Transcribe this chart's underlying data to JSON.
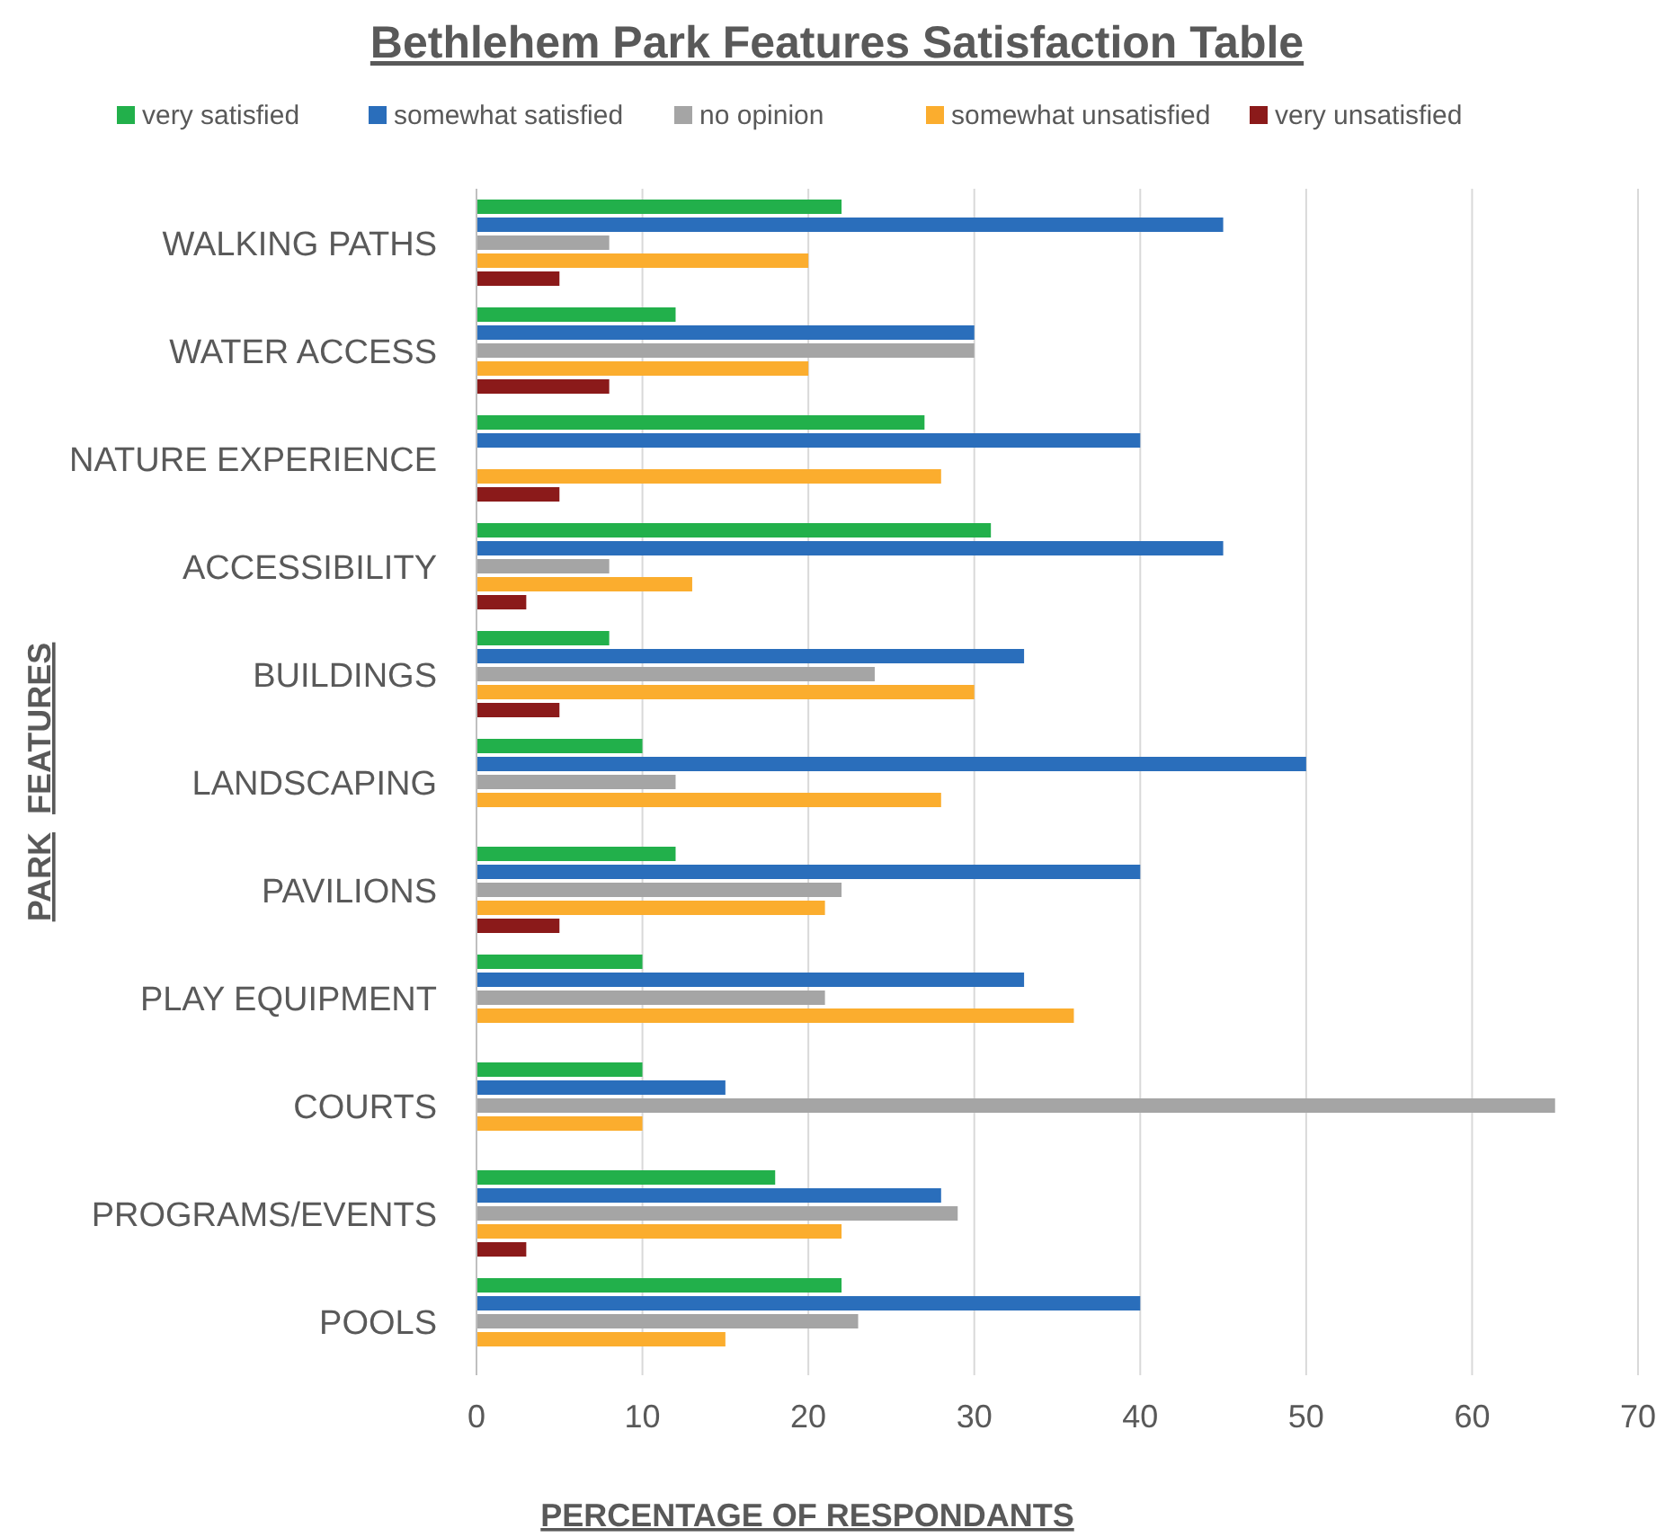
{
  "chart_data": {
    "type": "bar",
    "orientation": "horizontal",
    "title": "Bethlehem Park Features Satisfaction Table",
    "xlabel": "PERCENTAGE OF RESPONDANTS",
    "ylabel": "PARK  FEATURES",
    "categories": [
      "WALKING PATHS",
      "WATER ACCESS",
      "NATURE EXPERIENCE",
      "ACCESSIBILITY",
      "BUILDINGS",
      "LANDSCAPING",
      "PAVILIONS",
      "PLAY EQUIPMENT",
      "COURTS",
      "PROGRAMS/EVENTS",
      "POOLS"
    ],
    "series": [
      {
        "name": "very satisfied",
        "color": "#22b04b",
        "values": [
          22,
          12,
          27,
          31,
          8,
          10,
          12,
          10,
          10,
          18,
          22
        ]
      },
      {
        "name": "somewhat satisfied",
        "color": "#2a6ebb",
        "values": [
          45,
          30,
          40,
          45,
          33,
          50,
          40,
          33,
          15,
          28,
          40
        ]
      },
      {
        "name": "no opinion",
        "color": "#a5a5a5",
        "values": [
          8,
          30,
          null,
          8,
          24,
          12,
          22,
          21,
          65,
          29,
          23
        ]
      },
      {
        "name": "somewhat unsatisfied",
        "color": "#fbad2e",
        "values": [
          20,
          20,
          28,
          13,
          30,
          28,
          21,
          36,
          10,
          22,
          15
        ]
      },
      {
        "name": "very unsatisfied",
        "color": "#8b1a1a",
        "values": [
          5,
          8,
          5,
          3,
          5,
          null,
          5,
          null,
          null,
          3,
          null
        ]
      }
    ],
    "xlim": [
      0,
      70
    ],
    "xticks": [
      0,
      10,
      20,
      30,
      40,
      50,
      60,
      70
    ],
    "grid": "x",
    "legend": "top"
  }
}
